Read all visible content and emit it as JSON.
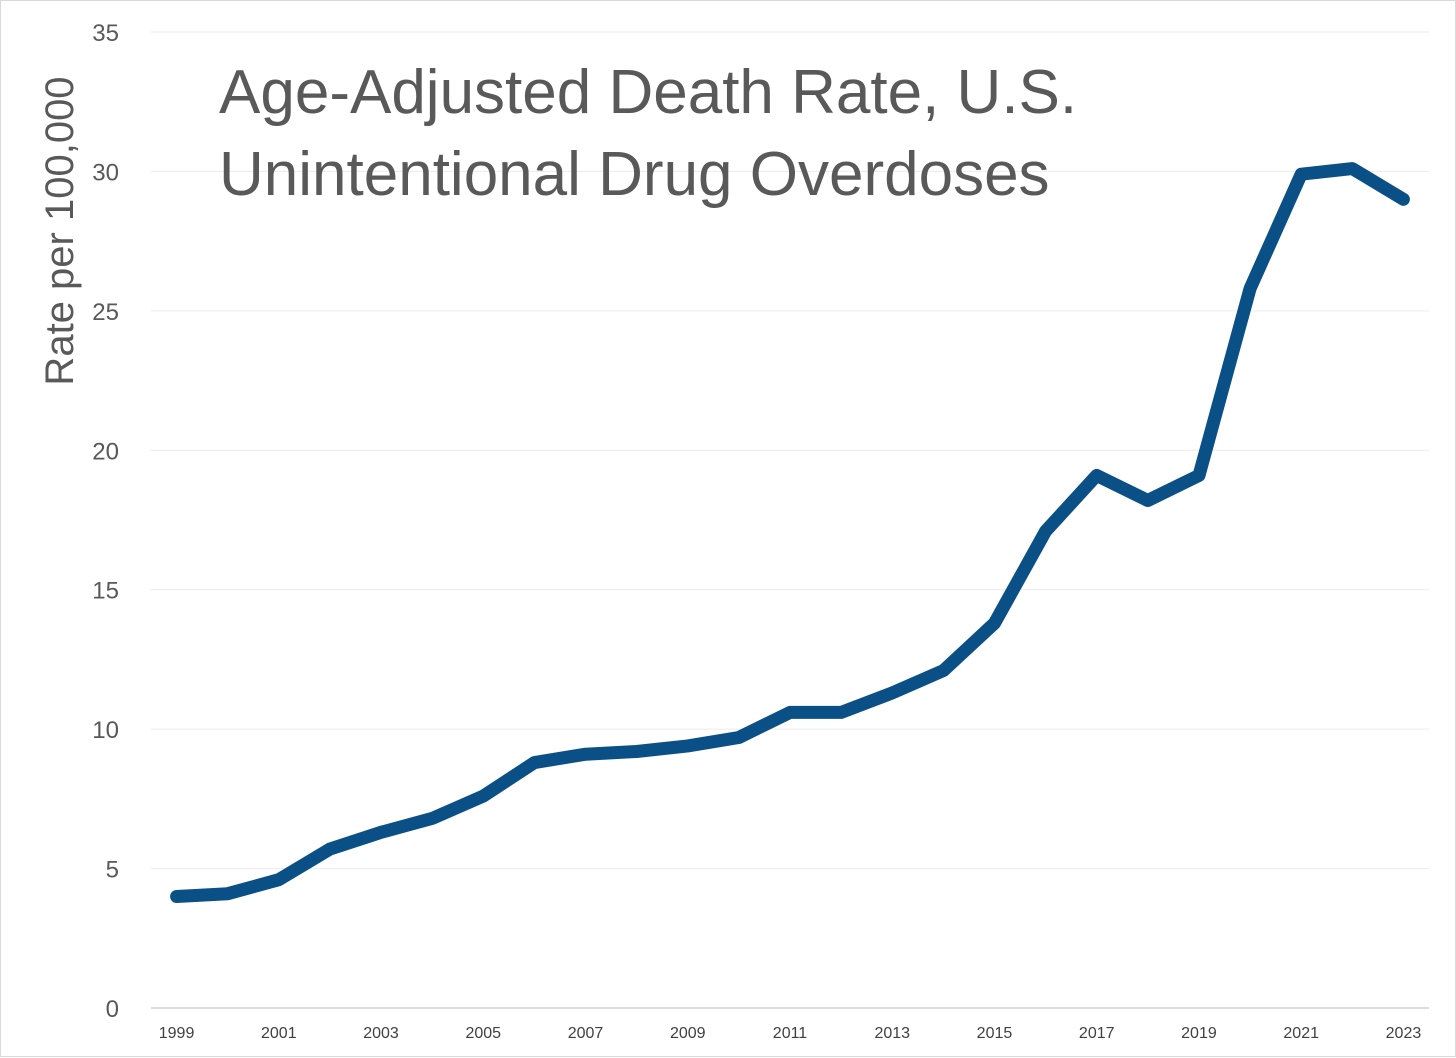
{
  "chart_data": {
    "type": "line",
    "title_lines": [
      "Age-Adjusted Death Rate, U.S.",
      "Unintentional Drug Overdoses"
    ],
    "xlabel": "",
    "ylabel": "Rate per 100,000",
    "ylim": [
      0,
      35
    ],
    "y_ticks": [
      0,
      5,
      10,
      15,
      20,
      25,
      30,
      35
    ],
    "x_tick_labels": [
      "1999",
      "2001",
      "2003",
      "2005",
      "2007",
      "2009",
      "2011",
      "2013",
      "2015",
      "2017",
      "2019",
      "2021",
      "2023"
    ],
    "grid": true,
    "legend": "none",
    "series": [
      {
        "color": "#0B4F87",
        "x": [
          1999,
          2000,
          2001,
          2002,
          2003,
          2004,
          2005,
          2006,
          2007,
          2008,
          2009,
          2010,
          2011,
          2012,
          2013,
          2014,
          2015,
          2016,
          2017,
          2018,
          2019,
          2020,
          2021,
          2022,
          2023
        ],
        "values": [
          4.0,
          4.1,
          4.6,
          5.7,
          6.3,
          6.8,
          7.6,
          8.8,
          9.1,
          9.2,
          9.4,
          9.7,
          10.6,
          10.6,
          11.3,
          12.1,
          13.8,
          17.1,
          19.1,
          18.2,
          19.1,
          25.8,
          29.9,
          30.1,
          29.0
        ]
      }
    ]
  }
}
